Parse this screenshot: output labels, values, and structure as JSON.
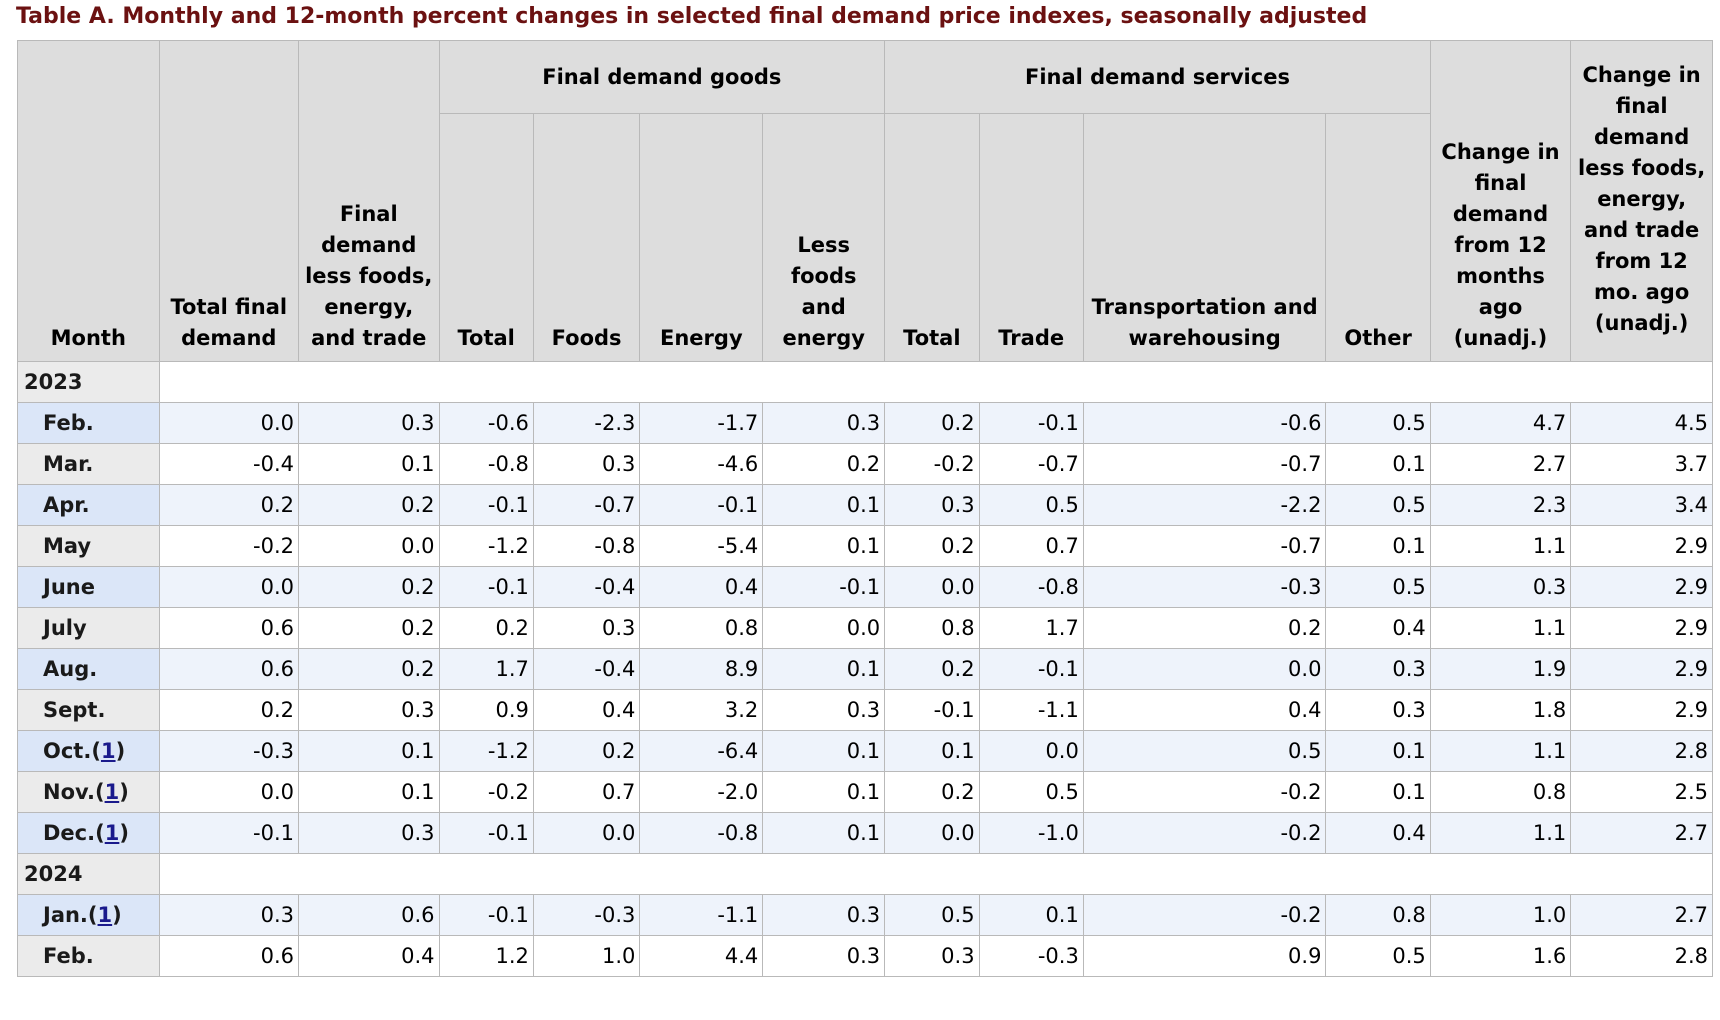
{
  "title": "Table A. Monthly and 12-month percent changes in selected final demand price indexes, seasonally adjusted",
  "headers": {
    "month": "Month",
    "total_final_demand": "Total final demand",
    "fd_less": "Final demand less foods, energy, and trade",
    "goods_group": "Final demand goods",
    "services_group": "Final demand services",
    "goods_total": "Total",
    "goods_foods": "Foods",
    "goods_energy": "Energy",
    "goods_less": "Less foods and energy",
    "services_total": "Total",
    "services_trade": "Trade",
    "services_transport": "Transportation and warehousing",
    "services_other": "Other",
    "change_12": "Change in final demand from 12 months ago (unadj.)",
    "change_12_less": "Change in final demand less foods, energy, and trade from 12 mo. ago (unadj.)"
  },
  "footnote_marker": "1",
  "years": [
    {
      "year": "2023",
      "rows": [
        {
          "month": "Feb.",
          "fn": false,
          "values": [
            "0.0",
            "0.3",
            "-0.6",
            "-2.3",
            "-1.7",
            "0.3",
            "0.2",
            "-0.1",
            "-0.6",
            "0.5",
            "4.7",
            "4.5"
          ]
        },
        {
          "month": "Mar.",
          "fn": false,
          "values": [
            "-0.4",
            "0.1",
            "-0.8",
            "0.3",
            "-4.6",
            "0.2",
            "-0.2",
            "-0.7",
            "-0.7",
            "0.1",
            "2.7",
            "3.7"
          ]
        },
        {
          "month": "Apr.",
          "fn": false,
          "values": [
            "0.2",
            "0.2",
            "-0.1",
            "-0.7",
            "-0.1",
            "0.1",
            "0.3",
            "0.5",
            "-2.2",
            "0.5",
            "2.3",
            "3.4"
          ]
        },
        {
          "month": "May",
          "fn": false,
          "values": [
            "-0.2",
            "0.0",
            "-1.2",
            "-0.8",
            "-5.4",
            "0.1",
            "0.2",
            "0.7",
            "-0.7",
            "0.1",
            "1.1",
            "2.9"
          ]
        },
        {
          "month": "June",
          "fn": false,
          "values": [
            "0.0",
            "0.2",
            "-0.1",
            "-0.4",
            "0.4",
            "-0.1",
            "0.0",
            "-0.8",
            "-0.3",
            "0.5",
            "0.3",
            "2.9"
          ]
        },
        {
          "month": "July",
          "fn": false,
          "values": [
            "0.6",
            "0.2",
            "0.2",
            "0.3",
            "0.8",
            "0.0",
            "0.8",
            "1.7",
            "0.2",
            "0.4",
            "1.1",
            "2.9"
          ]
        },
        {
          "month": "Aug.",
          "fn": false,
          "values": [
            "0.6",
            "0.2",
            "1.7",
            "-0.4",
            "8.9",
            "0.1",
            "0.2",
            "-0.1",
            "0.0",
            "0.3",
            "1.9",
            "2.9"
          ]
        },
        {
          "month": "Sept.",
          "fn": false,
          "values": [
            "0.2",
            "0.3",
            "0.9",
            "0.4",
            "3.2",
            "0.3",
            "-0.1",
            "-1.1",
            "0.4",
            "0.3",
            "1.8",
            "2.9"
          ]
        },
        {
          "month": "Oct.",
          "fn": true,
          "values": [
            "-0.3",
            "0.1",
            "-1.2",
            "0.2",
            "-6.4",
            "0.1",
            "0.1",
            "0.0",
            "0.5",
            "0.1",
            "1.1",
            "2.8"
          ]
        },
        {
          "month": "Nov.",
          "fn": true,
          "values": [
            "0.0",
            "0.1",
            "-0.2",
            "0.7",
            "-2.0",
            "0.1",
            "0.2",
            "0.5",
            "-0.2",
            "0.1",
            "0.8",
            "2.5"
          ]
        },
        {
          "month": "Dec.",
          "fn": true,
          "values": [
            "-0.1",
            "0.3",
            "-0.1",
            "0.0",
            "-0.8",
            "0.1",
            "0.0",
            "-1.0",
            "-0.2",
            "0.4",
            "1.1",
            "2.7"
          ]
        }
      ]
    },
    {
      "year": "2024",
      "rows": [
        {
          "month": "Jan.",
          "fn": true,
          "values": [
            "0.3",
            "0.6",
            "-0.1",
            "-0.3",
            "-1.1",
            "0.3",
            "0.5",
            "0.1",
            "-0.2",
            "0.8",
            "1.0",
            "2.7"
          ]
        },
        {
          "month": "Feb.",
          "fn": false,
          "values": [
            "0.6",
            "0.4",
            "1.2",
            "1.0",
            "4.4",
            "0.3",
            "0.3",
            "-0.3",
            "0.9",
            "0.5",
            "1.6",
            "2.8"
          ]
        }
      ]
    }
  ]
}
